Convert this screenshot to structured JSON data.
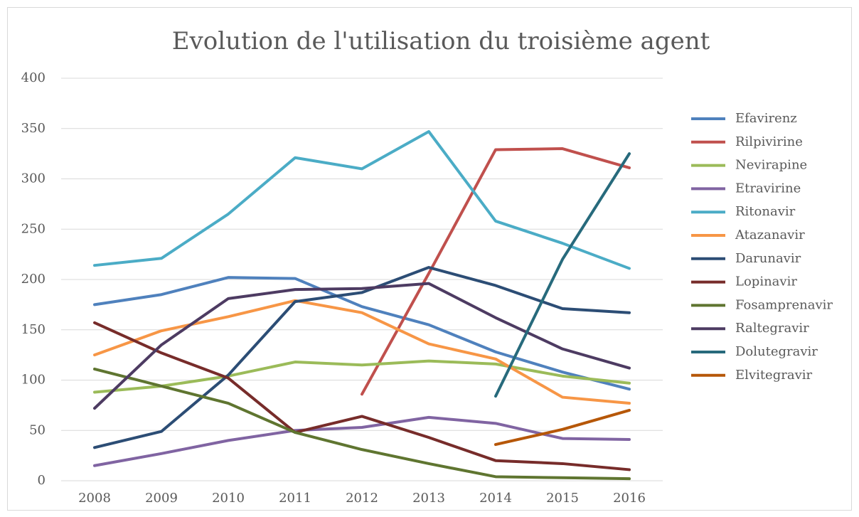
{
  "chart_data": {
    "type": "line",
    "title": "Evolution de l'utilisation du troisième agent",
    "categories": [
      "2008",
      "2009",
      "2010",
      "2011",
      "2012",
      "2013",
      "2014",
      "2015",
      "2016"
    ],
    "ylim": [
      0,
      400
    ],
    "yticks": [
      0,
      50,
      100,
      150,
      200,
      250,
      300,
      350,
      400
    ],
    "grid": true,
    "legend": "right",
    "series": [
      {
        "name": "Efavirenz",
        "color": "#4f81bd",
        "values": [
          175,
          185,
          202,
          201,
          173,
          155,
          128,
          108,
          91
        ]
      },
      {
        "name": "Rilpivirine",
        "color": "#c0504d",
        "values": [
          null,
          null,
          null,
          null,
          86,
          206,
          329,
          330,
          311
        ]
      },
      {
        "name": "Nevirapine",
        "color": "#9bbb59",
        "values": [
          88,
          94,
          104,
          118,
          115,
          119,
          116,
          104,
          97
        ]
      },
      {
        "name": "Etravirine",
        "color": "#8064a2",
        "values": [
          15,
          27,
          40,
          50,
          53,
          63,
          57,
          42,
          41
        ]
      },
      {
        "name": "Ritonavir",
        "color": "#4bacc6",
        "values": [
          214,
          221,
          265,
          321,
          310,
          347,
          258,
          236,
          211
        ]
      },
      {
        "name": "Atazanavir",
        "color": "#f79646",
        "values": [
          125,
          149,
          163,
          179,
          167,
          136,
          121,
          83,
          77
        ]
      },
      {
        "name": "Darunavir",
        "color": "#2c4d75",
        "values": [
          33,
          49,
          105,
          178,
          187,
          212,
          194,
          171,
          167
        ]
      },
      {
        "name": "Lopinavir",
        "color": "#772c2a",
        "values": [
          157,
          127,
          102,
          48,
          64,
          43,
          20,
          17,
          11
        ]
      },
      {
        "name": "Fosamprenavir",
        "color": "#5f7530",
        "values": [
          111,
          94,
          77,
          48,
          31,
          17,
          4,
          3,
          2
        ]
      },
      {
        "name": "Raltegravir",
        "color": "#4d3b62",
        "values": [
          72,
          135,
          181,
          190,
          191,
          196,
          162,
          131,
          112
        ]
      },
      {
        "name": "Dolutegravir",
        "color": "#276a7c",
        "values": [
          null,
          null,
          null,
          null,
          null,
          null,
          84,
          220,
          325
        ]
      },
      {
        "name": "Elvitegravir",
        "color": "#b65708",
        "values": [
          null,
          null,
          null,
          null,
          null,
          null,
          36,
          51,
          70
        ]
      }
    ]
  }
}
